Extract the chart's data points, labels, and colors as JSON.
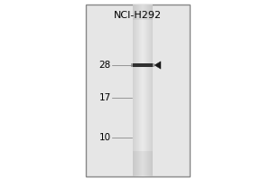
{
  "title": "NCI-H292",
  "mw_markers": [
    28,
    17,
    10
  ],
  "band_mw": 28.5,
  "background_color": "#f0f0f0",
  "gel_box_color": "#e8e8e8",
  "lane_color": "#d0d0d0",
  "band_color": "#303030",
  "arrow_color": "#1a1a1a",
  "border_color": "#888888",
  "title_fontsize": 8,
  "marker_fontsize": 7.5,
  "fig_width": 3.0,
  "fig_height": 2.0,
  "dpi": 100
}
